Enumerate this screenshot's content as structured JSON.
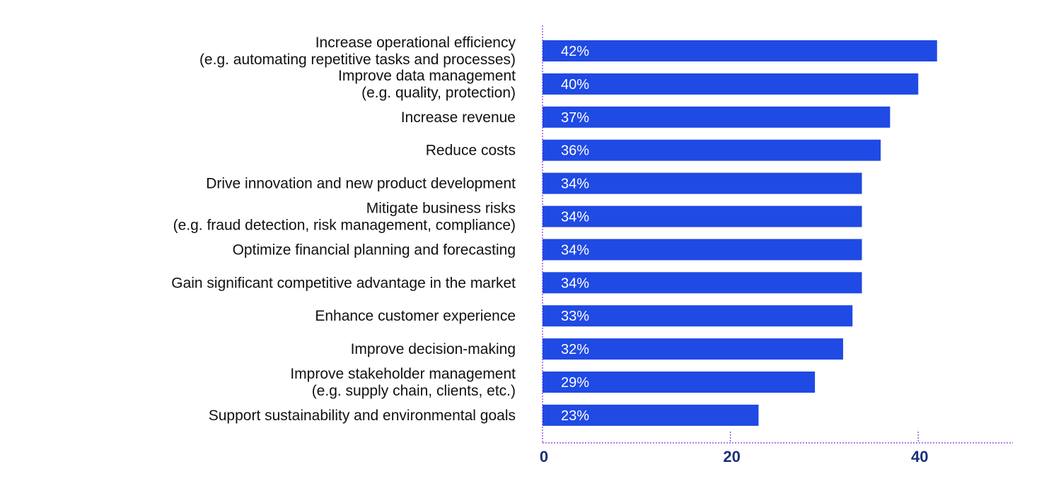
{
  "chart_data": {
    "type": "bar",
    "orientation": "horizontal",
    "categories": [
      [
        "Increase operational efficiency",
        "(e.g. automating repetitive tasks and processes)"
      ],
      [
        "Improve data management",
        "(e.g. quality, protection)"
      ],
      [
        "Increase revenue"
      ],
      [
        "Reduce costs"
      ],
      [
        "Drive innovation and new product development"
      ],
      [
        "Mitigate business risks",
        "(e.g. fraud detection, risk management, compliance)"
      ],
      [
        "Optimize financial planning and forecasting"
      ],
      [
        "Gain significant competitive advantage in the market"
      ],
      [
        "Enhance customer experience"
      ],
      [
        "Improve decision-making"
      ],
      [
        "Improve stakeholder management",
        "(e.g. supply chain, clients, etc.)"
      ],
      [
        "Support sustainability and environmental goals"
      ]
    ],
    "values": [
      42,
      40,
      37,
      36,
      34,
      34,
      34,
      34,
      33,
      32,
      29,
      23
    ],
    "data_labels": [
      "42%",
      "40%",
      "37%",
      "36%",
      "34%",
      "34%",
      "34%",
      "34%",
      "33%",
      "32%",
      "29%",
      "23%"
    ],
    "xlim": [
      0,
      50
    ],
    "xticks": [
      0,
      20,
      40
    ],
    "xtick_labels": [
      "0",
      "20",
      "40"
    ],
    "grid": false,
    "colors": {
      "bar": "#1f4ae4",
      "axis": "#8a2be2",
      "tick_label": "#1b2f7a",
      "category_label": "#111111",
      "bar_label": "#ffffff"
    }
  }
}
